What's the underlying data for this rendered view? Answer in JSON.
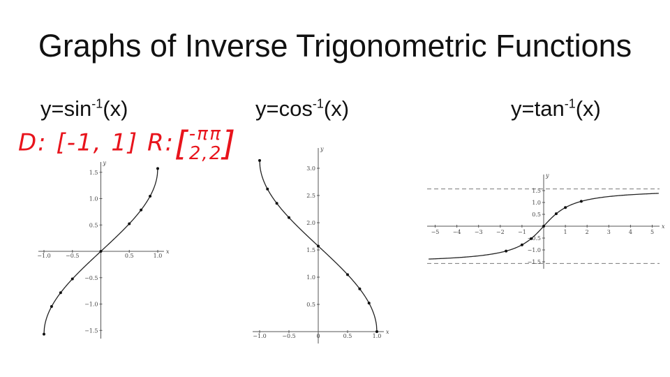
{
  "slide": {
    "title": "Graphs of Inverse Trigonometric Functions",
    "handwritten_note": {
      "domain_label": "D:",
      "domain_value": "[-1, 1]",
      "range_label": "R:",
      "range_open": "[",
      "range_low_num": "-π",
      "range_low_den": "2,",
      "range_high_num": "π",
      "range_high_den": "2",
      "range_close": "]",
      "color": "#e8141c"
    }
  },
  "chart_data": [
    {
      "type": "line",
      "title": "y=sin",
      "title_sup": "-1",
      "title_tail": "(x)",
      "xlabel": "x",
      "ylabel": "y",
      "xlim": [
        -1,
        1
      ],
      "ylim": [
        -1.5708,
        1.5708
      ],
      "xticks": [
        -1.0,
        -0.5,
        0.5,
        1.0
      ],
      "xtick_labels": [
        "−1.0",
        "−0.5",
        "0.5",
        "1.0"
      ],
      "yticks": [
        -1.5,
        -1.0,
        -0.5,
        0.5,
        1.0,
        1.5
      ],
      "ytick_labels": [
        "−1.5",
        "−1.0",
        "−0.5",
        "0.5",
        "1.0",
        "1.5"
      ],
      "points": {
        "x": [
          -1,
          -0.866,
          -0.707,
          -0.5,
          0,
          0.5,
          0.707,
          0.866,
          1
        ],
        "y": [
          -1.571,
          -1.047,
          -0.785,
          -0.524,
          0,
          0.524,
          0.785,
          1.047,
          1.571
        ]
      },
      "grid": false
    },
    {
      "type": "line",
      "title": "y=cos",
      "title_sup": "-1",
      "title_tail": "(x)",
      "xlabel": "x",
      "ylabel": "y",
      "xlim": [
        -1,
        1
      ],
      "ylim": [
        0,
        3.1416
      ],
      "xticks": [
        -1.0,
        -0.5,
        0,
        0.5,
        1.0
      ],
      "xtick_labels": [
        "−1.0",
        "−0.5",
        "0",
        "0.5",
        "1.0"
      ],
      "yticks": [
        0.5,
        1.0,
        1.5,
        2.0,
        2.5,
        3.0
      ],
      "ytick_labels": [
        "0.5",
        "1.0",
        "1.5",
        "2.0",
        "2.5",
        "3.0"
      ],
      "points": {
        "x": [
          -1,
          -0.866,
          -0.707,
          -0.5,
          0,
          0.5,
          0.707,
          0.866,
          1
        ],
        "y": [
          3.142,
          2.618,
          2.356,
          2.094,
          1.571,
          1.047,
          0.785,
          0.524,
          0
        ]
      },
      "grid": false
    },
    {
      "type": "line",
      "title": "y=tan",
      "title_sup": "-1",
      "title_tail": "(x)",
      "xlabel": "x",
      "ylabel": "y",
      "xlim": [
        -5.3,
        5.3
      ],
      "ylim": [
        -1.6,
        1.6
      ],
      "xticks": [
        -5,
        -4,
        -3,
        -2,
        -1,
        1,
        2,
        3,
        4,
        5
      ],
      "xtick_labels": [
        "−5",
        "−4",
        "−3",
        "−2",
        "−1",
        "1",
        "2",
        "3",
        "4",
        "5"
      ],
      "yticks": [
        -1.5,
        -1.0,
        -0.5,
        0.5,
        1.0,
        1.5
      ],
      "ytick_labels": [
        "−1.5",
        "−1.0",
        "−0.5",
        "0.5",
        "1.0",
        "1.5"
      ],
      "asymptotes_y": [
        -1.5708,
        1.5708
      ],
      "points": {
        "x": [
          -1.732,
          -1,
          -0.577,
          0,
          0.577,
          1,
          1.732
        ],
        "y": [
          -1.047,
          -0.785,
          -0.524,
          0,
          0.524,
          0.785,
          1.047
        ]
      },
      "grid": false
    }
  ]
}
